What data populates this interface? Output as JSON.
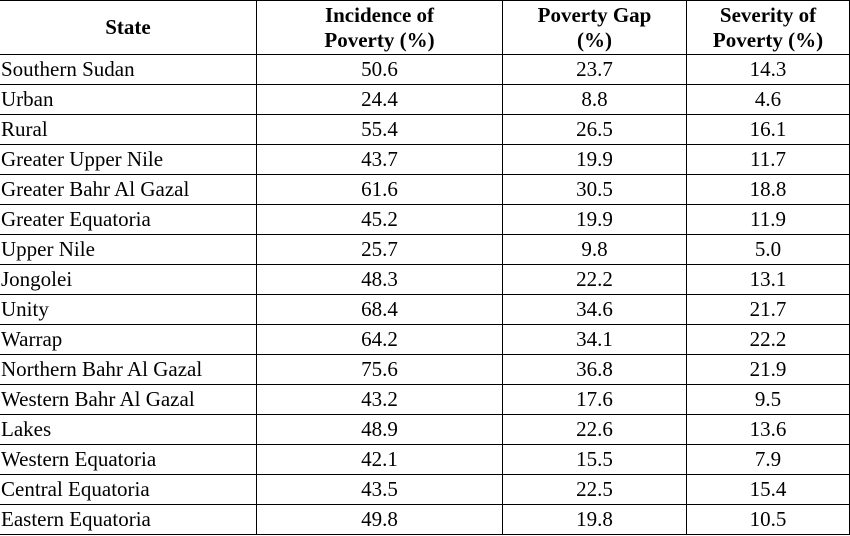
{
  "table": {
    "headers": {
      "state": "State",
      "incidence": [
        "Incidence of",
        "Poverty (%)"
      ],
      "gap": [
        "Poverty Gap",
        "(%)"
      ],
      "severity": [
        "Severity of",
        "Poverty (%)"
      ]
    },
    "rows": [
      {
        "state": "Southern Sudan",
        "incidence": "50.6",
        "gap": "23.7",
        "severity": "14.3"
      },
      {
        "state": "Urban",
        "incidence": "24.4",
        "gap": "8.8",
        "severity": "4.6"
      },
      {
        "state": "Rural",
        "incidence": "55.4",
        "gap": "26.5",
        "severity": "16.1"
      },
      {
        "state": "Greater Upper Nile",
        "incidence": "43.7",
        "gap": "19.9",
        "severity": "11.7"
      },
      {
        "state": "Greater Bahr Al Gazal",
        "incidence": "61.6",
        "gap": "30.5",
        "severity": "18.8"
      },
      {
        "state": "Greater Equatoria",
        "incidence": "45.2",
        "gap": "19.9",
        "severity": "11.9"
      },
      {
        "state": "Upper Nile",
        "incidence": "25.7",
        "gap": "9.8",
        "severity": "5.0"
      },
      {
        "state": "Jongolei",
        "incidence": "48.3",
        "gap": "22.2",
        "severity": "13.1"
      },
      {
        "state": "Unity",
        "incidence": "68.4",
        "gap": "34.6",
        "severity": "21.7"
      },
      {
        "state": "Warrap",
        "incidence": "64.2",
        "gap": "34.1",
        "severity": "22.2"
      },
      {
        "state": "Northern Bahr Al Gazal",
        "incidence": "75.6",
        "gap": "36.8",
        "severity": "21.9"
      },
      {
        "state": "Western Bahr Al Gazal",
        "incidence": "43.2",
        "gap": "17.6",
        "severity": "9.5"
      },
      {
        "state": "Lakes",
        "incidence": "48.9",
        "gap": "22.6",
        "severity": "13.6"
      },
      {
        "state": "Western Equatoria",
        "incidence": "42.1",
        "gap": "15.5",
        "severity": "7.9"
      },
      {
        "state": "Central Equatoria",
        "incidence": "43.5",
        "gap": "22.5",
        "severity": "15.4"
      },
      {
        "state": "Eastern Equatoria",
        "incidence": "49.8",
        "gap": "19.8",
        "severity": "10.5"
      }
    ]
  }
}
